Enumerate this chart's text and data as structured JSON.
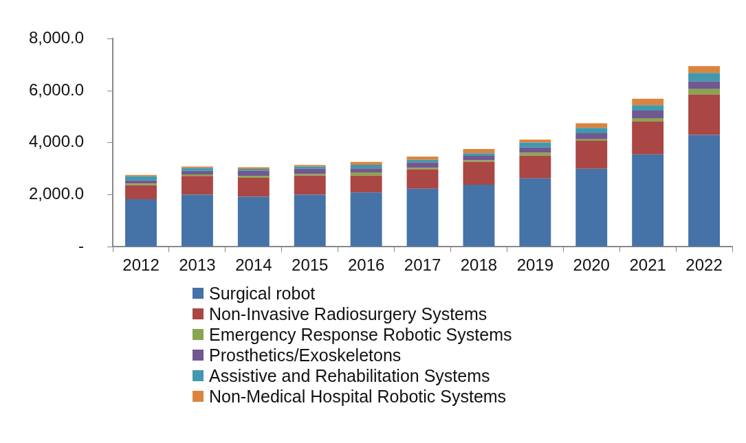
{
  "chart_data": {
    "type": "bar",
    "stacked": true,
    "categories": [
      "2012",
      "2013",
      "2014",
      "2015",
      "2016",
      "2017",
      "2018",
      "2019",
      "2020",
      "2021",
      "2022"
    ],
    "series": [
      {
        "name": "Surgical robot",
        "color": "#4572a7",
        "values": [
          1830,
          2000,
          1920,
          2000,
          2085,
          2230,
          2380,
          2630,
          3000,
          3555,
          4300
        ]
      },
      {
        "name": "Non-Invasive Radiosurgery Systems",
        "color": "#aa4643",
        "values": [
          530,
          720,
          730,
          730,
          645,
          745,
          885,
          870,
          1075,
          1265,
          1555
        ]
      },
      {
        "name": "Emergency Response Robotic Systems",
        "color": "#89a54e",
        "values": [
          70,
          60,
          70,
          60,
          130,
          65,
          60,
          110,
          60,
          125,
          205
        ]
      },
      {
        "name": "Prosthetics/Exoskeletons",
        "color": "#71588f",
        "values": [
          120,
          140,
          200,
          210,
          150,
          200,
          165,
          205,
          230,
          290,
          290
        ]
      },
      {
        "name": "Assistive and Rehabilitation Systems",
        "color": "#4198af",
        "values": [
          160,
          110,
          70,
          80,
          140,
          100,
          100,
          190,
          205,
          205,
          330
        ]
      },
      {
        "name": "Non-Medical Hospital Robotic Systems",
        "color": "#db843d",
        "values": [
          50,
          50,
          70,
          60,
          110,
          125,
          170,
          115,
          180,
          250,
          265
        ]
      }
    ],
    "ylim": [
      0,
      8000
    ],
    "yticks": [
      {
        "value": 0,
        "label": "-"
      },
      {
        "value": 2000,
        "label": "2,000.0"
      },
      {
        "value": 4000,
        "label": "4,000.0"
      },
      {
        "value": 6000,
        "label": "6,000.0"
      },
      {
        "value": 8000,
        "label": "8,000.0"
      }
    ],
    "grid": false,
    "legend": "bottom"
  }
}
